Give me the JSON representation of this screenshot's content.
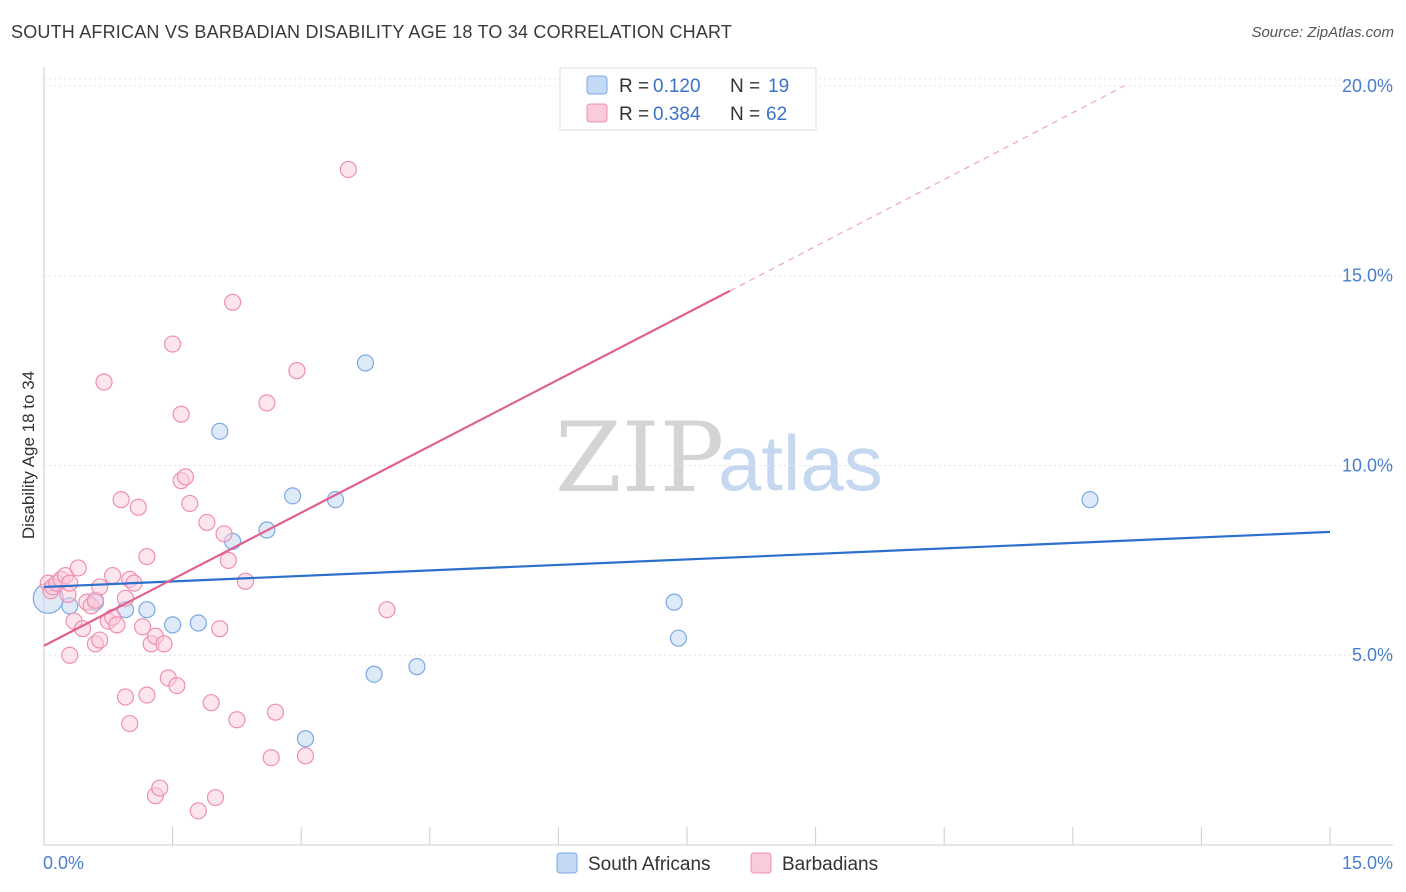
{
  "header": {
    "title": "SOUTH AFRICAN VS BARBADIAN DISABILITY AGE 18 TO 34 CORRELATION CHART",
    "source": "Source: ZipAtlas.com"
  },
  "watermark": {
    "zip": "ZIP",
    "atlas": "atlas"
  },
  "chart_data": {
    "type": "scatter",
    "title": "SOUTH AFRICAN VS BARBADIAN DISABILITY AGE 18 TO 34 CORRELATION CHART",
    "xlabel": "",
    "ylabel": "Disability Age 18 to 34",
    "xlim": [
      0,
      15
    ],
    "ylim": [
      0,
      20.5
    ],
    "x_tick_labels": [
      "0.0%",
      "15.0%"
    ],
    "y_ticks": [
      5,
      10,
      15,
      20
    ],
    "y_tick_labels": [
      "5.0%",
      "10.0%",
      "15.0%",
      "20.0%"
    ],
    "grid": true,
    "legend_position": "top-center",
    "colors": {
      "south_africans": "#7aa9e6",
      "south_africans_fill": "#c4d9f3",
      "south_africans_line": "#2c6fcd",
      "barbadians": "#f08fb0",
      "barbadians_fill": "#f9cbdb",
      "barbadians_line": "#e0608f",
      "tick": "#4a7fcb"
    },
    "legend": [
      {
        "r_label": "R =",
        "r_value": "0.120",
        "n_label": "N =",
        "n_value": "19"
      },
      {
        "r_label": "R =",
        "r_value": "0.384",
        "n_label": "N =",
        "n_value": "62"
      }
    ],
    "series": [
      {
        "name": "South Africans",
        "trend": {
          "x0": 0,
          "y0": 6.8,
          "x1": 15,
          "y1": 8.25
        },
        "points": [
          {
            "x": 0.05,
            "y": 6.5
          },
          {
            "x": 0.6,
            "y": 6.4
          },
          {
            "x": 0.95,
            "y": 6.2
          },
          {
            "x": 1.2,
            "y": 6.2
          },
          {
            "x": 1.5,
            "y": 5.8
          },
          {
            "x": 1.8,
            "y": 5.85
          },
          {
            "x": 2.05,
            "y": 10.9
          },
          {
            "x": 2.2,
            "y": 8.0
          },
          {
            "x": 2.6,
            "y": 8.3
          },
          {
            "x": 2.9,
            "y": 9.2
          },
          {
            "x": 3.05,
            "y": 2.8
          },
          {
            "x": 3.4,
            "y": 9.1
          },
          {
            "x": 3.75,
            "y": 12.7
          },
          {
            "x": 3.85,
            "y": 4.5
          },
          {
            "x": 4.35,
            "y": 4.7
          },
          {
            "x": 7.35,
            "y": 6.4
          },
          {
            "x": 7.4,
            "y": 5.45
          },
          {
            "x": 12.2,
            "y": 9.1
          },
          {
            "x": 0.3,
            "y": 6.3
          }
        ]
      },
      {
        "name": "Barbadians",
        "trend": {
          "x0": 0,
          "y0": 5.25,
          "x1": 8.0,
          "y1": 14.6
        },
        "trend_dashed": {
          "x0": 8.0,
          "y0": 14.6,
          "x1": 12.6,
          "y1": 20.0
        },
        "points": [
          {
            "x": 0.05,
            "y": 6.9
          },
          {
            "x": 0.08,
            "y": 6.7
          },
          {
            "x": 0.1,
            "y": 6.8
          },
          {
            "x": 0.15,
            "y": 6.9
          },
          {
            "x": 0.2,
            "y": 7.0
          },
          {
            "x": 0.25,
            "y": 7.1
          },
          {
            "x": 0.28,
            "y": 6.6
          },
          {
            "x": 0.3,
            "y": 6.9
          },
          {
            "x": 0.3,
            "y": 5.0
          },
          {
            "x": 0.35,
            "y": 5.9
          },
          {
            "x": 0.4,
            "y": 7.3
          },
          {
            "x": 0.45,
            "y": 5.7
          },
          {
            "x": 0.5,
            "y": 6.4
          },
          {
            "x": 0.55,
            "y": 6.3
          },
          {
            "x": 0.6,
            "y": 6.45
          },
          {
            "x": 0.6,
            "y": 5.3
          },
          {
            "x": 0.65,
            "y": 6.8
          },
          {
            "x": 0.65,
            "y": 5.4
          },
          {
            "x": 0.7,
            "y": 12.2
          },
          {
            "x": 0.75,
            "y": 5.9
          },
          {
            "x": 0.8,
            "y": 6.0
          },
          {
            "x": 0.8,
            "y": 7.1
          },
          {
            "x": 0.85,
            "y": 5.8
          },
          {
            "x": 0.9,
            "y": 9.1
          },
          {
            "x": 0.95,
            "y": 6.5
          },
          {
            "x": 0.95,
            "y": 3.9
          },
          {
            "x": 1.0,
            "y": 7.0
          },
          {
            "x": 1.0,
            "y": 3.2
          },
          {
            "x": 1.05,
            "y": 6.9
          },
          {
            "x": 1.1,
            "y": 8.9
          },
          {
            "x": 1.15,
            "y": 5.75
          },
          {
            "x": 1.2,
            "y": 7.6
          },
          {
            "x": 1.2,
            "y": 3.95
          },
          {
            "x": 1.25,
            "y": 5.3
          },
          {
            "x": 1.3,
            "y": 5.5
          },
          {
            "x": 1.3,
            "y": 1.3
          },
          {
            "x": 1.35,
            "y": 1.5
          },
          {
            "x": 1.4,
            "y": 5.3
          },
          {
            "x": 1.45,
            "y": 4.4
          },
          {
            "x": 1.5,
            "y": 13.2
          },
          {
            "x": 1.55,
            "y": 4.2
          },
          {
            "x": 1.6,
            "y": 11.35
          },
          {
            "x": 1.6,
            "y": 9.6
          },
          {
            "x": 1.65,
            "y": 9.7
          },
          {
            "x": 1.7,
            "y": 9.0
          },
          {
            "x": 1.8,
            "y": 0.9
          },
          {
            "x": 1.9,
            "y": 8.5
          },
          {
            "x": 1.95,
            "y": 3.75
          },
          {
            "x": 2.0,
            "y": 1.25
          },
          {
            "x": 2.05,
            "y": 5.7
          },
          {
            "x": 2.1,
            "y": 8.2
          },
          {
            "x": 2.15,
            "y": 7.5
          },
          {
            "x": 2.2,
            "y": 14.3
          },
          {
            "x": 2.25,
            "y": 3.3
          },
          {
            "x": 2.35,
            "y": 6.95
          },
          {
            "x": 2.6,
            "y": 11.65
          },
          {
            "x": 2.65,
            "y": 2.3
          },
          {
            "x": 2.7,
            "y": 3.5
          },
          {
            "x": 2.95,
            "y": 12.5
          },
          {
            "x": 3.05,
            "y": 2.35
          },
          {
            "x": 3.55,
            "y": 17.8
          },
          {
            "x": 4.0,
            "y": 6.2
          }
        ]
      }
    ],
    "bottom_legend": [
      "South Africans",
      "Barbadians"
    ]
  }
}
